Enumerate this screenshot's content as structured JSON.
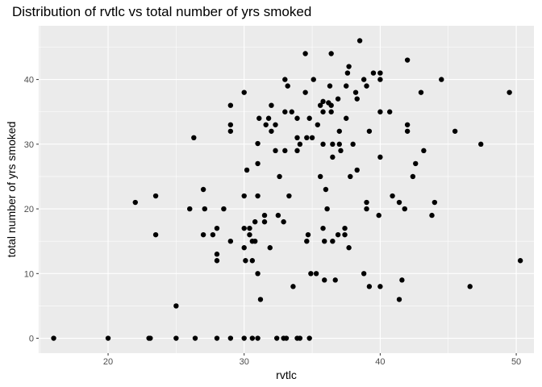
{
  "chart_data": {
    "type": "scatter",
    "title": "Distribution of rvtlc vs total number of yrs smoked",
    "xlabel": "rvtlc",
    "ylabel": "total number of yrs smoked",
    "xlim": [
      14.9,
      51.3
    ],
    "ylim": [
      -2.3,
      48.3
    ],
    "xticks": [
      20,
      30,
      40,
      50
    ],
    "xtick_labels": [
      "20",
      "30",
      "40",
      "50"
    ],
    "xminor": [
      15,
      25,
      35,
      45
    ],
    "yticks": [
      0,
      10,
      20,
      30,
      40
    ],
    "ytick_labels": [
      "0",
      "10",
      "20",
      "30",
      "40"
    ],
    "yminor": [
      5,
      15,
      25,
      35,
      45
    ],
    "grid": true,
    "legend": "none",
    "colors": {
      "panel": "#ebebeb",
      "grid": "#ffffff",
      "point": "#000000",
      "tick": "#333333"
    },
    "points": [
      [
        16,
        0
      ],
      [
        20,
        0
      ],
      [
        23,
        0
      ],
      [
        23.1,
        0
      ],
      [
        25,
        0
      ],
      [
        26.4,
        0
      ],
      [
        28,
        0
      ],
      [
        29,
        0
      ],
      [
        30,
        0
      ],
      [
        30.6,
        0
      ],
      [
        31,
        0
      ],
      [
        32.4,
        0
      ],
      [
        32.9,
        0
      ],
      [
        33.1,
        0
      ],
      [
        33.9,
        0
      ],
      [
        34.1,
        0
      ],
      [
        34.8,
        0
      ],
      [
        25,
        5
      ],
      [
        31.2,
        6
      ],
      [
        41.4,
        6
      ],
      [
        33.6,
        8
      ],
      [
        39.2,
        8
      ],
      [
        40,
        8
      ],
      [
        41.6,
        9
      ],
      [
        46.6,
        8
      ],
      [
        35.9,
        9
      ],
      [
        36.7,
        9
      ],
      [
        31,
        10
      ],
      [
        34.9,
        10
      ],
      [
        35.3,
        10
      ],
      [
        38.8,
        10
      ],
      [
        28,
        12
      ],
      [
        30.1,
        12
      ],
      [
        30.6,
        12
      ],
      [
        50.3,
        12
      ],
      [
        28,
        13
      ],
      [
        30,
        14
      ],
      [
        31.9,
        14
      ],
      [
        37.7,
        14
      ],
      [
        29,
        15
      ],
      [
        30.6,
        15
      ],
      [
        34.6,
        15
      ],
      [
        35.9,
        15
      ],
      [
        36.5,
        15
      ],
      [
        30.8,
        15
      ],
      [
        23.5,
        16
      ],
      [
        27,
        16
      ],
      [
        27.7,
        16
      ],
      [
        30.4,
        16
      ],
      [
        34.7,
        16
      ],
      [
        36.9,
        16
      ],
      [
        37.4,
        16
      ],
      [
        28,
        17
      ],
      [
        30,
        17
      ],
      [
        30.4,
        17
      ],
      [
        35.8,
        17
      ],
      [
        37.4,
        17
      ],
      [
        30.8,
        18
      ],
      [
        31.5,
        18
      ],
      [
        32.9,
        18
      ],
      [
        31.5,
        19
      ],
      [
        32.5,
        19
      ],
      [
        39.9,
        19
      ],
      [
        43.8,
        19
      ],
      [
        26,
        20
      ],
      [
        27.1,
        20
      ],
      [
        28.5,
        20
      ],
      [
        36.1,
        20
      ],
      [
        41.8,
        20
      ],
      [
        39,
        20
      ],
      [
        22,
        21
      ],
      [
        39,
        21
      ],
      [
        41.4,
        21
      ],
      [
        44,
        21
      ],
      [
        23.5,
        22
      ],
      [
        30,
        22
      ],
      [
        31,
        22
      ],
      [
        33.3,
        22
      ],
      [
        40.9,
        22
      ],
      [
        27,
        23
      ],
      [
        36,
        23
      ],
      [
        32.6,
        25
      ],
      [
        35.6,
        25
      ],
      [
        37.8,
        25
      ],
      [
        42.4,
        25
      ],
      [
        30.2,
        26
      ],
      [
        38.3,
        26
      ],
      [
        31,
        27
      ],
      [
        42.6,
        27
      ],
      [
        36.5,
        28
      ],
      [
        40,
        28
      ],
      [
        43.2,
        29
      ],
      [
        32.3,
        29
      ],
      [
        33,
        29
      ],
      [
        33.9,
        29
      ],
      [
        37.1,
        29
      ],
      [
        26.3,
        31
      ],
      [
        33.9,
        31
      ],
      [
        34.6,
        31
      ],
      [
        35,
        31
      ],
      [
        36.5,
        30
      ],
      [
        31,
        30.1
      ],
      [
        34.1,
        30
      ],
      [
        35.8,
        30
      ],
      [
        37,
        30
      ],
      [
        38,
        30
      ],
      [
        47.4,
        30
      ],
      [
        29,
        32
      ],
      [
        32,
        32
      ],
      [
        37,
        32
      ],
      [
        39.2,
        32
      ],
      [
        42,
        32
      ],
      [
        45.5,
        32
      ],
      [
        29,
        33
      ],
      [
        31.6,
        33
      ],
      [
        32.3,
        33
      ],
      [
        35.4,
        33
      ],
      [
        42,
        33
      ],
      [
        31.8,
        34
      ],
      [
        31.1,
        34
      ],
      [
        33.9,
        34
      ],
      [
        34.8,
        34
      ],
      [
        37.5,
        34
      ],
      [
        33,
        35
      ],
      [
        33.5,
        35
      ],
      [
        35.8,
        35
      ],
      [
        36.4,
        35
      ],
      [
        40,
        35
      ],
      [
        40.7,
        35
      ],
      [
        29,
        36
      ],
      [
        32,
        36
      ],
      [
        35.6,
        36
      ],
      [
        36.4,
        36
      ],
      [
        36.2,
        36.4
      ],
      [
        35.8,
        36.6
      ],
      [
        36.9,
        37
      ],
      [
        38.3,
        37
      ],
      [
        30,
        38
      ],
      [
        34.5,
        38
      ],
      [
        38.2,
        38
      ],
      [
        43,
        38
      ],
      [
        49.5,
        38
      ],
      [
        33.2,
        39
      ],
      [
        36.3,
        39
      ],
      [
        37.5,
        39
      ],
      [
        39,
        39
      ],
      [
        38.8,
        40
      ],
      [
        40,
        40
      ],
      [
        44.5,
        40
      ],
      [
        33,
        40
      ],
      [
        35.1,
        40
      ],
      [
        37.6,
        41
      ],
      [
        39.5,
        41
      ],
      [
        40,
        41
      ],
      [
        37.7,
        42
      ],
      [
        34.5,
        44
      ],
      [
        36.4,
        44
      ],
      [
        42,
        43
      ],
      [
        38.5,
        46
      ]
    ]
  }
}
